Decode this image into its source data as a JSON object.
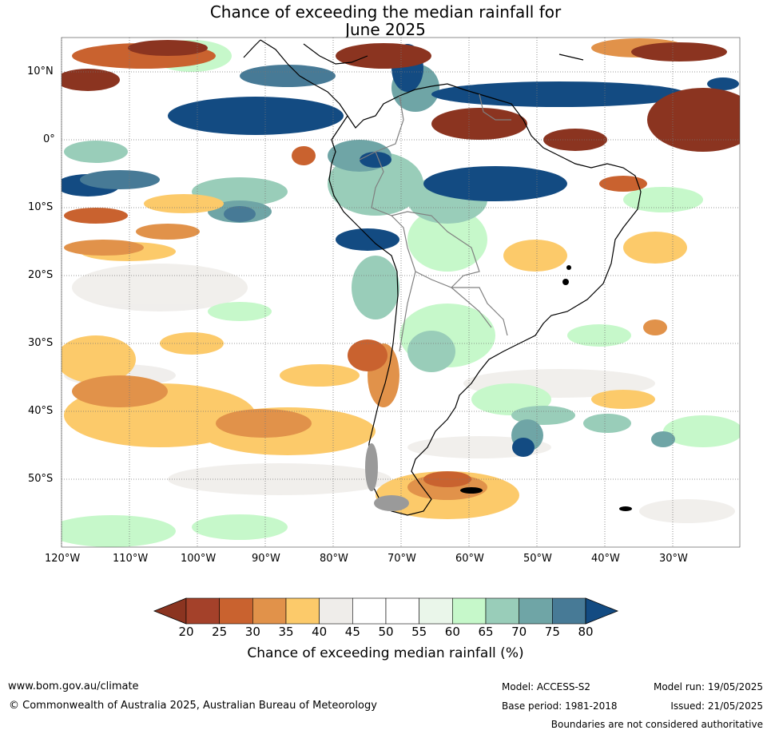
{
  "title": {
    "line1": "Chance of exceeding the median rainfall for",
    "line2": "June 2025"
  },
  "map": {
    "lat_labels": [
      "10°N",
      "0°",
      "10°S",
      "20°S",
      "30°S",
      "40°S",
      "50°S"
    ],
    "lon_labels": [
      "120°W",
      "110°W",
      "100°W",
      "90°W",
      "80°W",
      "70°W",
      "60°W",
      "50°W",
      "40°W",
      "30°W"
    ],
    "land_outline_color": "#000000",
    "border_color": "#808080"
  },
  "colorbar": {
    "ticks": [
      "20",
      "25",
      "30",
      "35",
      "40",
      "45",
      "50",
      "55",
      "60",
      "65",
      "70",
      "75",
      "80"
    ],
    "colors": [
      "#a4412a",
      "#c9622f",
      "#e1924a",
      "#fcca6a",
      "#efedea",
      "#ffffff",
      "#ffffff",
      "#eaf6ea",
      "#c6f8ca",
      "#99cdb9",
      "#6fa5a6",
      "#477a96"
    ],
    "under_color": "#8b3420",
    "over_color": "#134b82",
    "label": "Chance of exceeding median rainfall (%)"
  },
  "footer": {
    "url": "www.bom.gov.au/climate",
    "copyright": "© Commonwealth of Australia 2025, Australian Bureau of Meteorology",
    "model": "Model: ACCESS-S2",
    "base_period": "Base period: 1981-2018",
    "model_run": "Model run: 19/05/2025",
    "issued": "Issued: 21/05/2025",
    "disclaimer": "Boundaries are not considered authoritative"
  }
}
